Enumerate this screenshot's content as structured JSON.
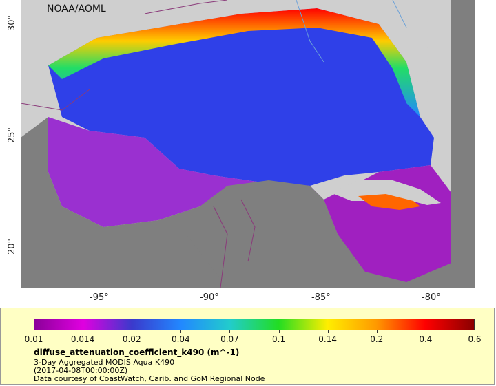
{
  "map": {
    "credit": "NOAA/AOML",
    "lon_ticks": [
      "-95°",
      "-90°",
      "-85°",
      "-80°"
    ],
    "lat_ticks": [
      "30°",
      "25°",
      "20°"
    ],
    "extent": {
      "lon_min": -98,
      "lon_max": -78,
      "lat_min": 18,
      "lat_max": 31
    },
    "colors": {
      "land": "#7f7f7f",
      "no_data": "#cfcfcf",
      "boundaries": "#8a3a7a"
    }
  },
  "legend": {
    "ticks": [
      "0.01",
      "0.014",
      "0.02",
      "0.04",
      "0.07",
      "0.1",
      "0.14",
      "0.2",
      "0.4",
      "0.6"
    ],
    "colors": [
      "#8b0099",
      "#e000e0",
      "#3a3acc",
      "#2288ff",
      "#22cccc",
      "#22dd22",
      "#ffee00",
      "#ff9900",
      "#ff0000",
      "#8b0000"
    ],
    "variable": "diffuse_attenuation_coefficient_k490 (m^-1)",
    "line1": "3-Day Aggregated MODIS Aqua K490",
    "line2": "(2017-04-08T00:00:00Z)",
    "line3": "Data courtesy of CoastWatch, Carib. and GoM Regional Node"
  }
}
